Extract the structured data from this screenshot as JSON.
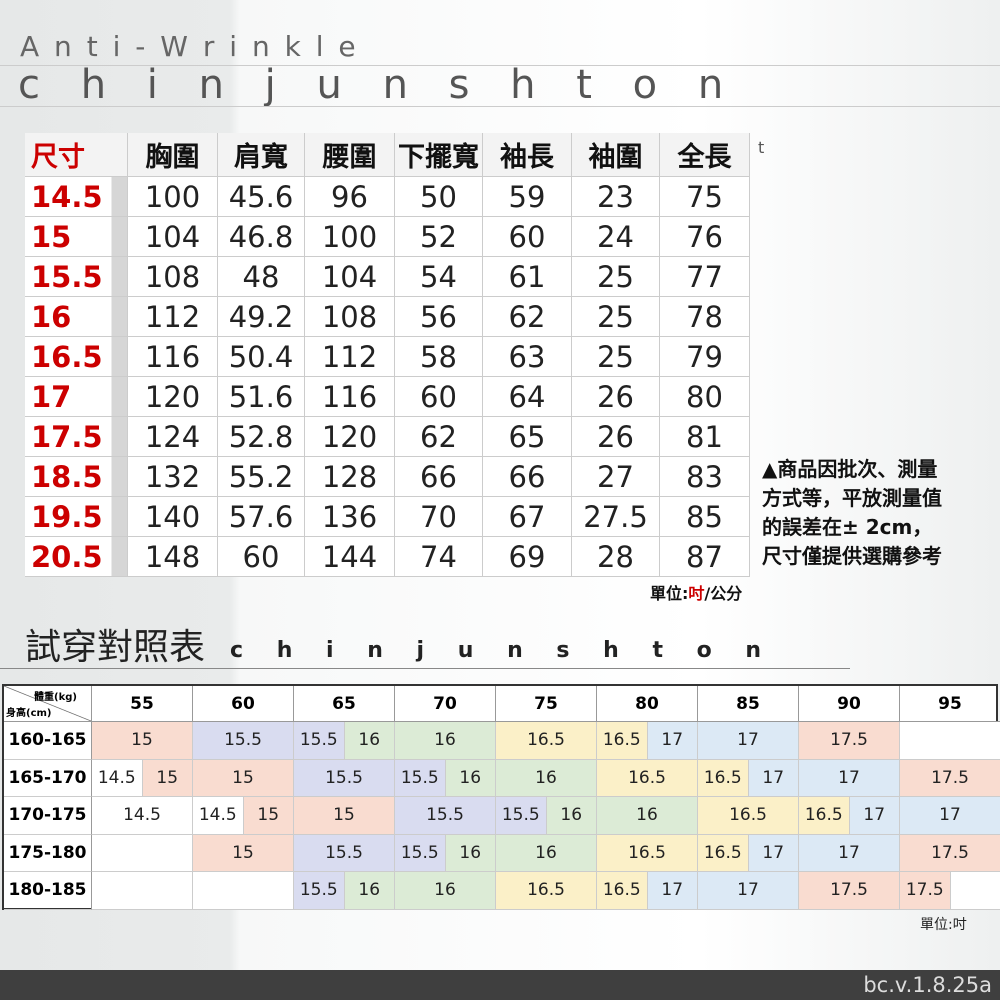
{
  "header": {
    "line1": "A n t i - W r i n k l e",
    "line2": "c h i n j u n s h t o n"
  },
  "size_table": {
    "columns": [
      "尺寸",
      "胸圍",
      "肩寬",
      "腰圍",
      "下擺寬",
      "袖長",
      "袖圍",
      "全長"
    ],
    "mark": "t",
    "rows": [
      [
        "14.5",
        100,
        45.6,
        96,
        50,
        59,
        23,
        75
      ],
      [
        "15",
        104,
        46.8,
        100,
        52,
        60,
        24,
        76
      ],
      [
        "15.5",
        108,
        48,
        104,
        54,
        61,
        25,
        77
      ],
      [
        "16",
        112,
        49.2,
        108,
        56,
        62,
        25,
        78
      ],
      [
        "16.5",
        116,
        50.4,
        112,
        58,
        63,
        25,
        79
      ],
      [
        "17",
        120,
        51.6,
        116,
        60,
        64,
        26,
        80
      ],
      [
        "17.5",
        124,
        52.8,
        120,
        62,
        65,
        26,
        81
      ],
      [
        "18.5",
        132,
        55.2,
        128,
        66,
        66,
        27,
        83
      ],
      [
        "19.5",
        140,
        57.6,
        136,
        70,
        67,
        27.5,
        85
      ],
      [
        "20.5",
        148,
        60,
        144,
        74,
        69,
        28,
        87
      ]
    ]
  },
  "note": {
    "lines": [
      "▲商品因批次、測量",
      "方式等，平放測量值",
      "的誤差在± 2cm，",
      "尺寸僅提供選購參考"
    ]
  },
  "unit": {
    "parts": [
      "單位:",
      "吋",
      "/公分"
    ]
  },
  "fit_section": {
    "title": "試穿對照表",
    "brand": "c h i n j u n s h t o n"
  },
  "fit_table": {
    "corner_top": "體重(kg)",
    "corner_bottom": "身高(cm)",
    "weights": [
      55,
      60,
      65,
      70,
      75,
      80,
      85,
      90,
      95
    ],
    "colors": {
      "14.5": "#ffffff",
      "15": "#f9dcd0",
      "15.5": "#d9dcf0",
      "16": "#dcebd6",
      "16.5": "#fbf0c8",
      "17": "#dce9f5",
      "17.5": "#f9dcd0"
    },
    "rows": [
      {
        "label": "160-165",
        "cells": [
          [
            "15"
          ],
          [
            "15.5"
          ],
          [
            "15.5",
            "16"
          ],
          [
            "16"
          ],
          [
            "16.5"
          ],
          [
            "16.5",
            "17"
          ],
          [
            "17"
          ],
          [
            "17.5"
          ],
          [
            null
          ]
        ]
      },
      {
        "label": "165-170",
        "cells": [
          [
            "14.5",
            "15"
          ],
          [
            "15"
          ],
          [
            "15.5"
          ],
          [
            "15.5",
            "16"
          ],
          [
            "16"
          ],
          [
            "16.5"
          ],
          [
            "16.5",
            "17"
          ],
          [
            "17"
          ],
          [
            "17.5"
          ]
        ]
      },
      {
        "label": "170-175",
        "cells": [
          [
            "14.5"
          ],
          [
            "14.5",
            "15"
          ],
          [
            "15"
          ],
          [
            "15.5"
          ],
          [
            "15.5",
            "16"
          ],
          [
            "16"
          ],
          [
            "16.5"
          ],
          [
            "16.5",
            "17"
          ],
          [
            "17"
          ]
        ]
      },
      {
        "label": "175-180",
        "cells": [
          [
            null
          ],
          [
            "15"
          ],
          [
            "15.5"
          ],
          [
            "15.5",
            "16"
          ],
          [
            "16"
          ],
          [
            "16.5"
          ],
          [
            "16.5",
            "17"
          ],
          [
            "17"
          ],
          [
            "17.5"
          ]
        ]
      },
      {
        "label": "180-185",
        "cells": [
          [
            null
          ],
          [
            null
          ],
          [
            "15.5",
            "16"
          ],
          [
            "16"
          ],
          [
            "16.5"
          ],
          [
            "16.5",
            "17"
          ],
          [
            "17"
          ],
          [
            "17.5"
          ],
          [
            "17.5",
            null
          ]
        ]
      }
    ],
    "unit": "單位:吋"
  },
  "footer": {
    "version": "bc.v.1.8.25a"
  }
}
